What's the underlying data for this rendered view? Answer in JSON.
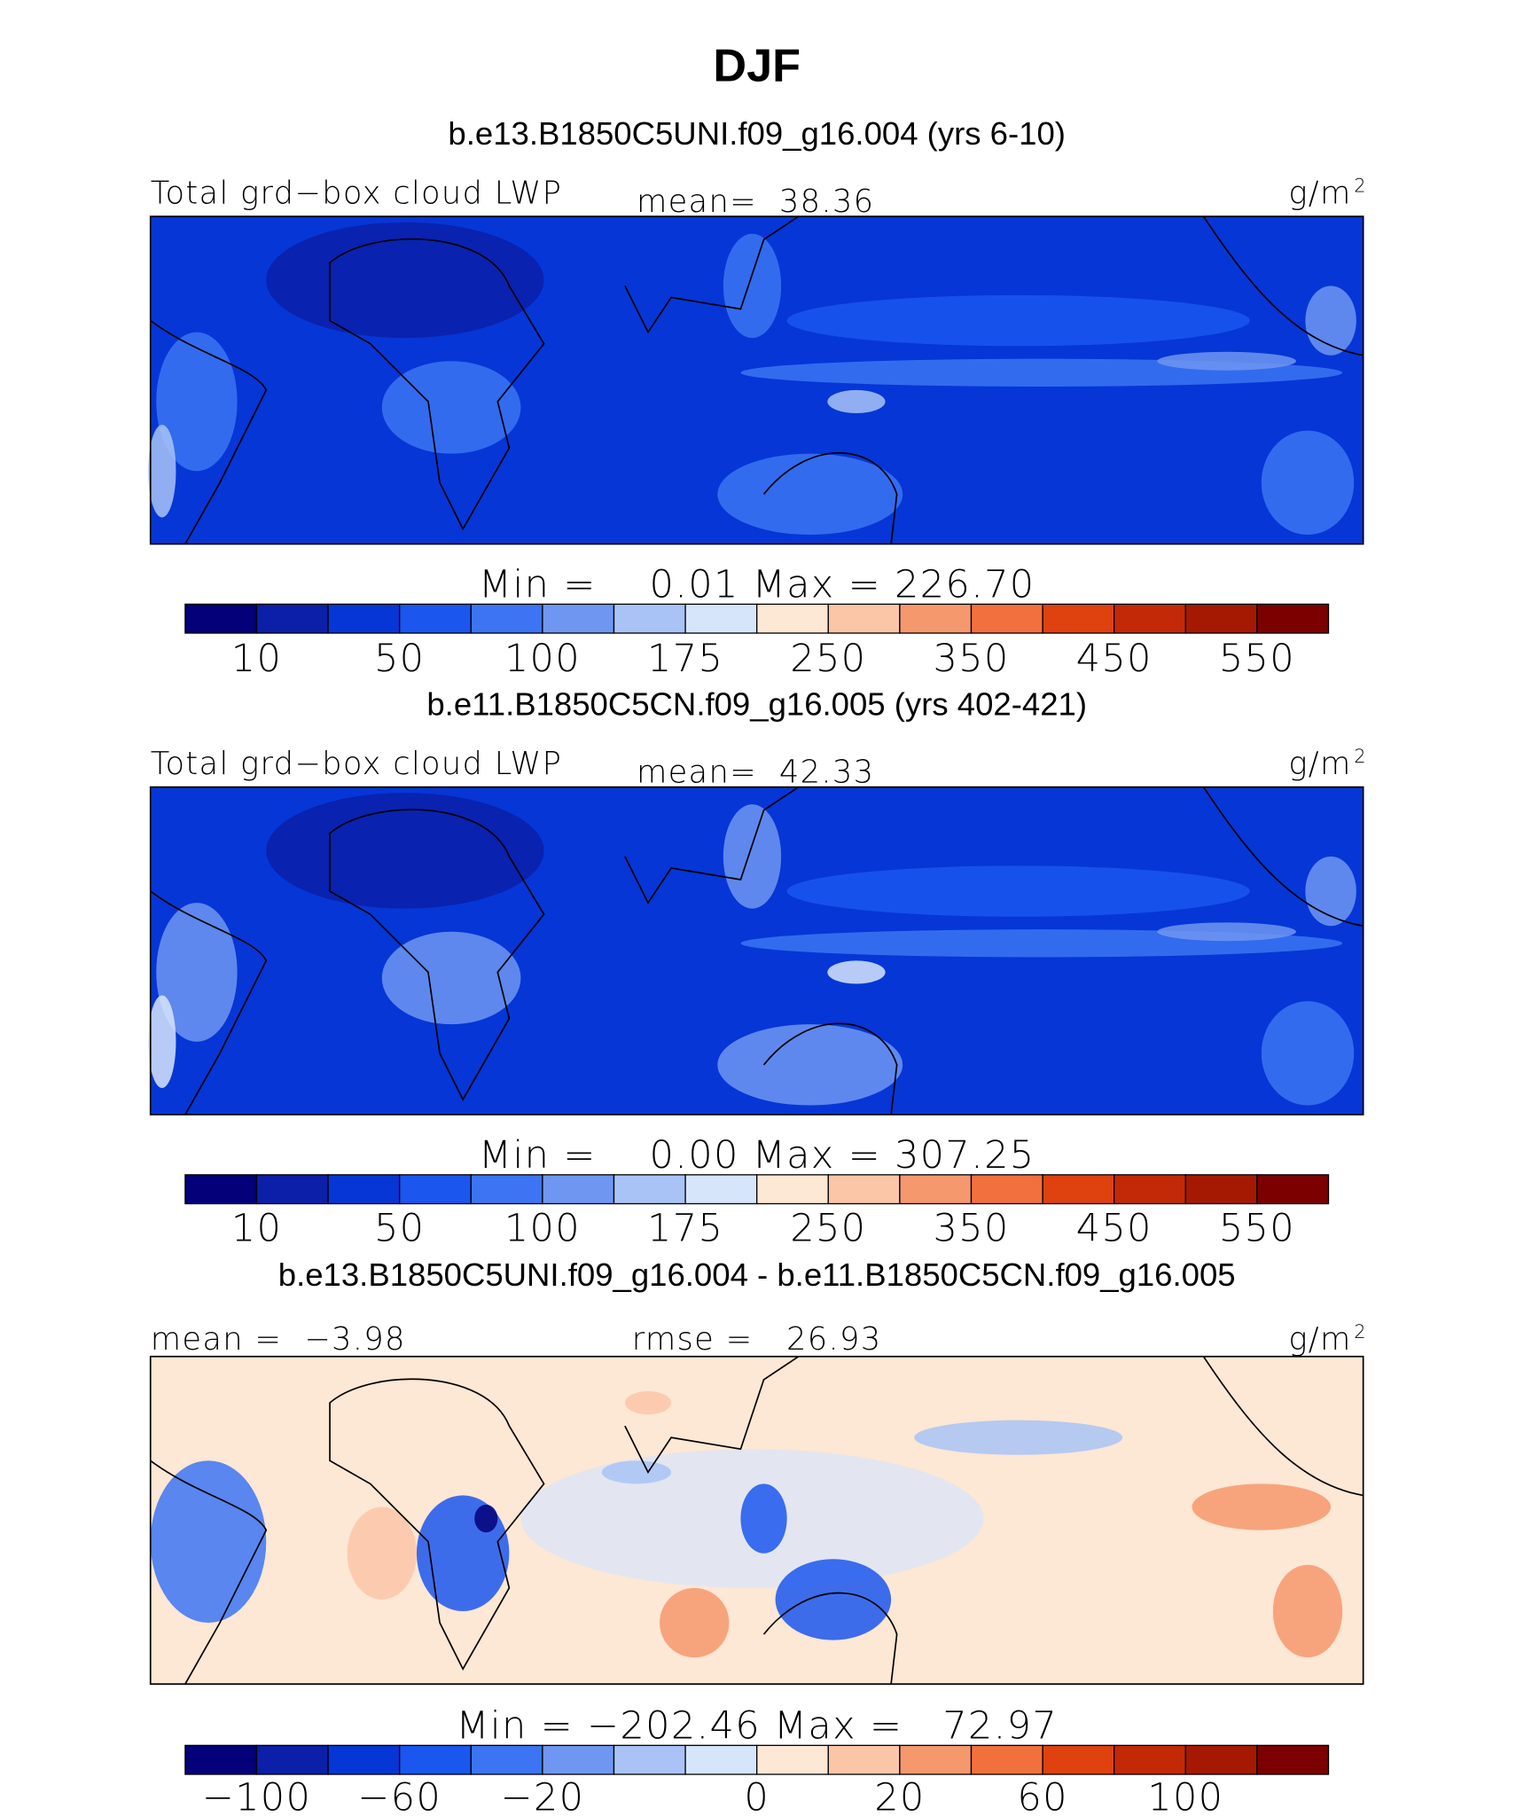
{
  "title": "DJF",
  "colorbar_colors": [
    "#03007a",
    "#0b1fa8",
    "#0636d6",
    "#1b56ef",
    "#3c74f3",
    "#6f97f1",
    "#a9c3f6",
    "#d7e5fb",
    "#fde7d5",
    "#fbc6a8",
    "#f6986d",
    "#f2703e",
    "#df410f",
    "#c32906",
    "#a51903",
    "#7c0000"
  ],
  "panels": [
    {
      "subtitle": "b.e13.B1850C5UNI.f09_g16.004 (yrs 6-10)",
      "left": "Total grd−box cloud LWP",
      "center": "mean=  38.36",
      "units": "g/m",
      "units_sup": "2",
      "minmax": "Min =    0.01 Max = 226.70",
      "labels": [
        "10",
        "50",
        "100",
        "175",
        "250",
        "350",
        "450",
        "550"
      ]
    },
    {
      "subtitle": "b.e11.B1850C5CN.f09_g16.005 (yrs 402-421)",
      "left": "Total grd−box cloud LWP",
      "center": "mean=  42.33",
      "units": "g/m",
      "units_sup": "2",
      "minmax": "Min =    0.00 Max = 307.25",
      "labels": [
        "10",
        "50",
        "100",
        "175",
        "250",
        "350",
        "450",
        "550"
      ]
    },
    {
      "subtitle": "b.e13.B1850C5UNI.f09_g16.004 - b.e11.B1850C5CN.f09_g16.005",
      "left": "mean =  −3.98",
      "center": "rmse =   26.93",
      "units": "g/m",
      "units_sup": "2",
      "minmax": "Min = −202.46 Max =   72.97",
      "labels": [
        "−100",
        "−60",
        "−20",
        "0",
        "20",
        "60",
        "100"
      ]
    }
  ]
}
